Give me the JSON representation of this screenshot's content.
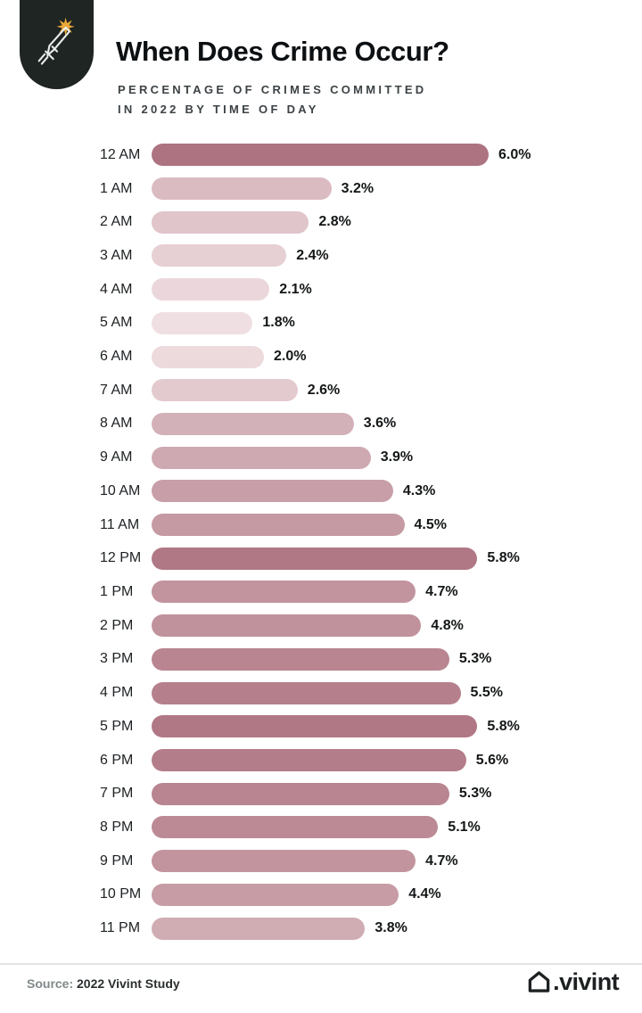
{
  "header": {
    "title": "When Does Crime Occur?",
    "subtitle_line1": "PERCENTAGE OF CRIMES COMMITTED",
    "subtitle_line2": "IN 2022 BY TIME OF DAY",
    "badge_icon": "knife-burst-icon",
    "badge_color": "#1f2523",
    "burst_color": "#eba838"
  },
  "chart_data": {
    "type": "bar",
    "orientation": "horizontal",
    "title": "When Does Crime Occur?",
    "subtitle": "Percentage of crimes committed in 2022 by time of day",
    "categories": [
      "12 AM",
      "1 AM",
      "2 AM",
      "3 AM",
      "4 AM",
      "5 AM",
      "6 AM",
      "7 AM",
      "8 AM",
      "9 AM",
      "10 AM",
      "11 AM",
      "12 PM",
      "1 PM",
      "2 PM",
      "3 PM",
      "4 PM",
      "5 PM",
      "6 PM",
      "7 PM",
      "8 PM",
      "9 PM",
      "10 PM",
      "11 PM"
    ],
    "values": [
      6.0,
      3.2,
      2.8,
      2.4,
      2.1,
      1.8,
      2.0,
      2.6,
      3.6,
      3.9,
      4.3,
      4.5,
      5.8,
      4.7,
      4.8,
      5.3,
      5.5,
      5.8,
      5.6,
      5.3,
      5.1,
      4.7,
      4.4,
      3.8
    ],
    "value_suffix": "%",
    "value_decimals": 1,
    "xlim": [
      0,
      6.0
    ],
    "grid": false,
    "legend": false,
    "color_scale": {
      "light": "#f0dfe2",
      "dark": "#ad7380",
      "min_value": 1.8,
      "max_value": 6.0
    }
  },
  "footer": {
    "source_label": "Source:",
    "source_text": " 2022 Vivint Study",
    "brand_text": ".vivint",
    "brand_icon": "house-icon",
    "brand_color": "#1d2122"
  }
}
